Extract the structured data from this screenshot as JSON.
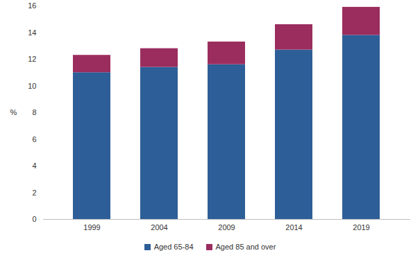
{
  "chart_data": {
    "type": "bar",
    "stacked": true,
    "categories": [
      "1999",
      "2004",
      "2009",
      "2014",
      "2019"
    ],
    "series": [
      {
        "name": "Aged 65-84",
        "color": "#2e5e97",
        "values": [
          11.0,
          11.4,
          11.6,
          12.7,
          13.8
        ]
      },
      {
        "name": "Aged 85 and over",
        "color": "#9b2d5e",
        "values": [
          1.3,
          1.4,
          1.7,
          1.9,
          2.1
        ]
      }
    ],
    "ylabel": "%",
    "ylim": [
      0,
      16
    ],
    "yticks": [
      0,
      2,
      4,
      6,
      8,
      10,
      12,
      14,
      16
    ],
    "grid": false,
    "legend": "bottom"
  }
}
